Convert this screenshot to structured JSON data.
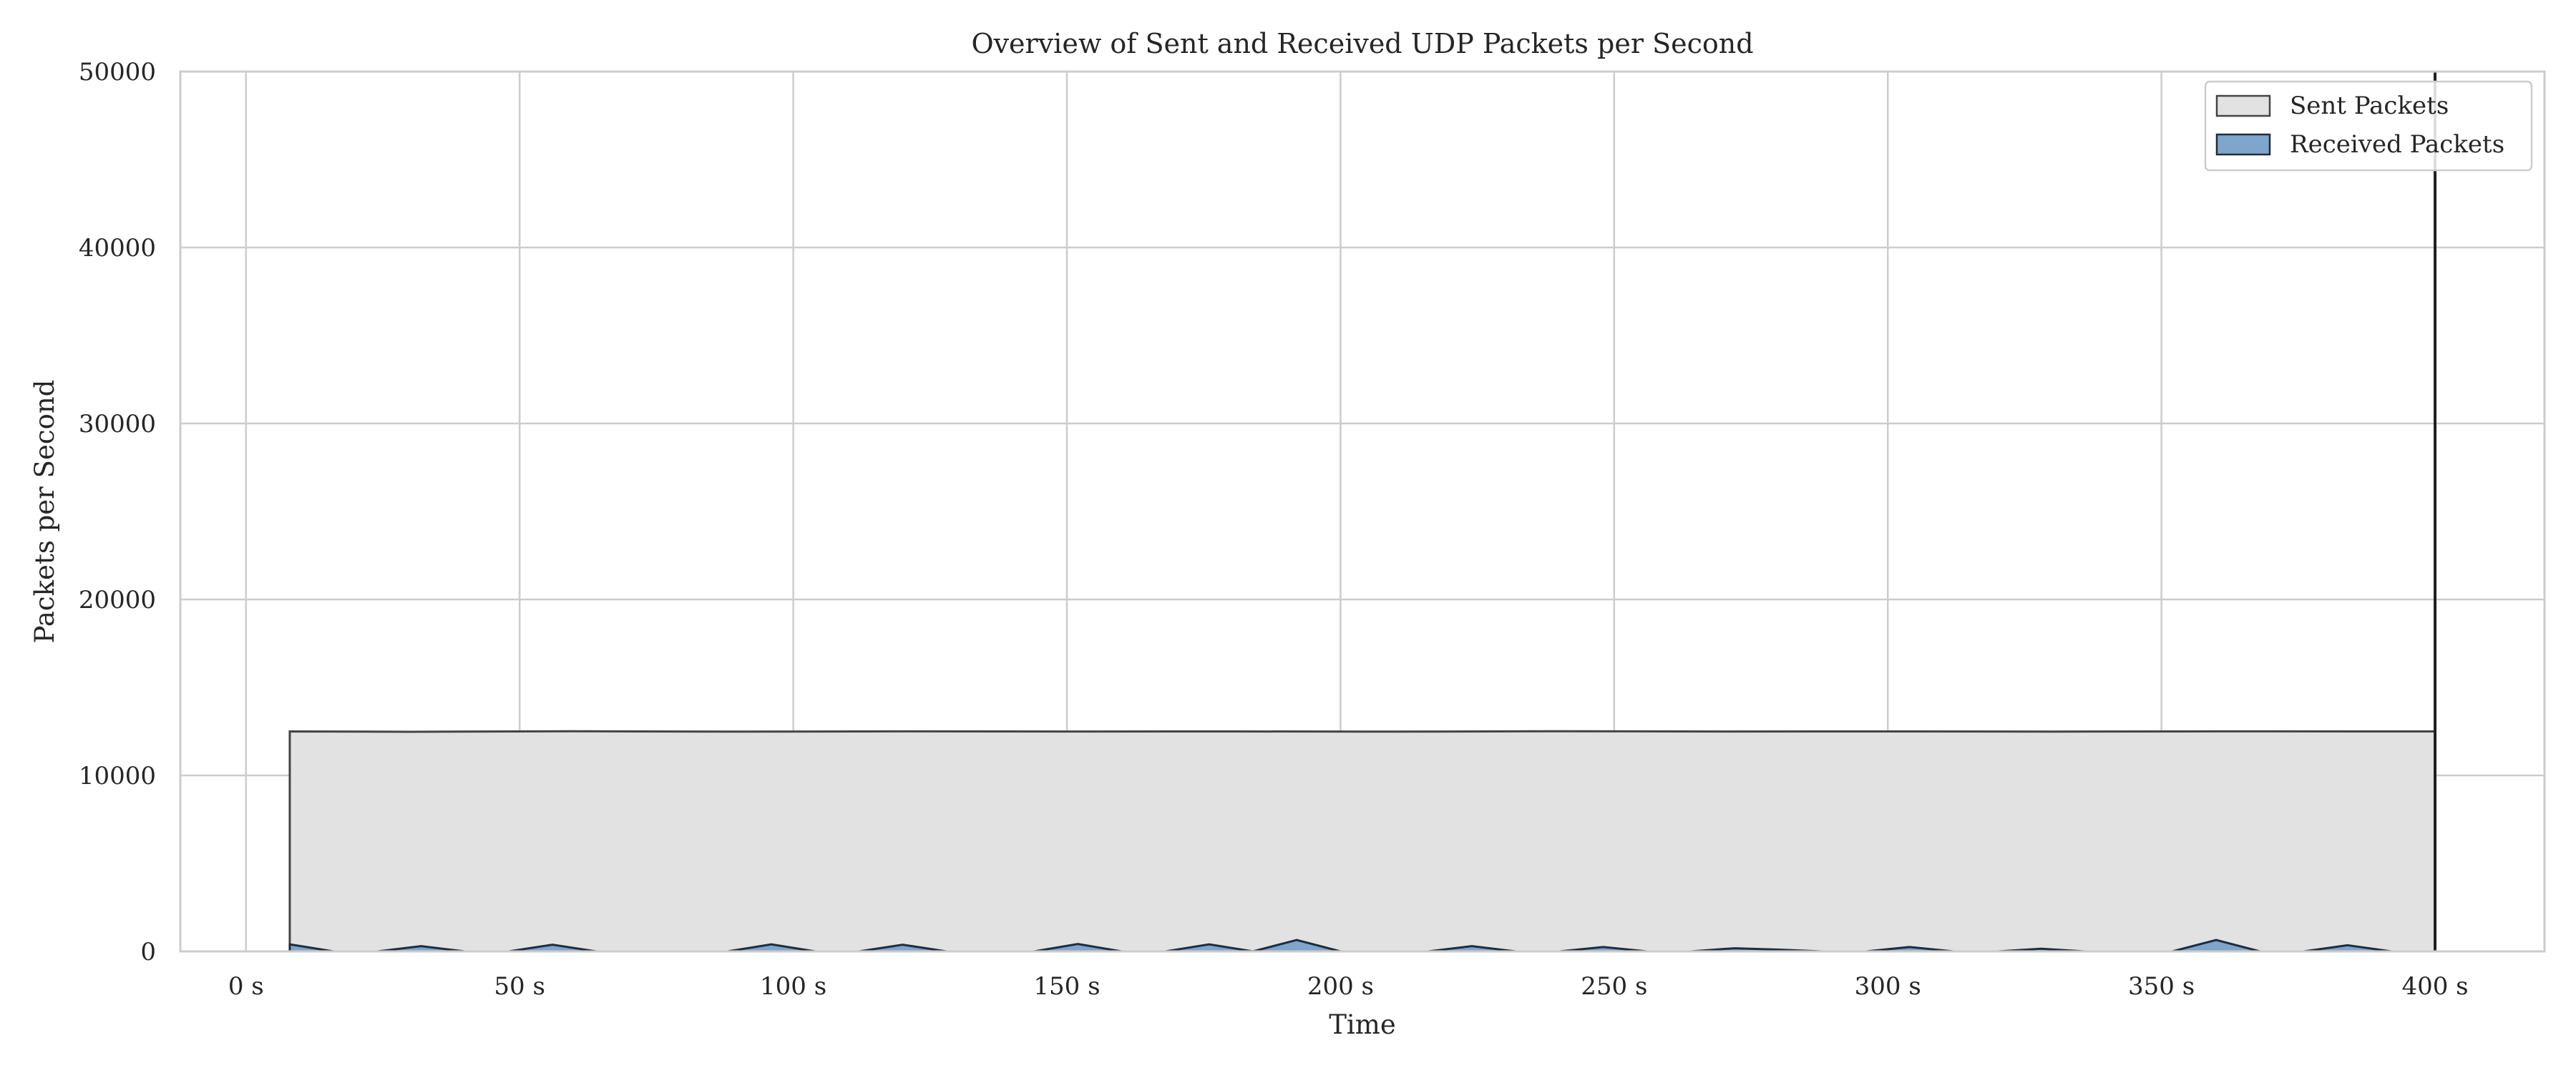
{
  "chart_data": {
    "type": "area",
    "title": "Overview of Sent and Received UDP Packets per Second",
    "xlabel": "Time",
    "ylabel": "Packets per Second",
    "xlim": [
      -12,
      420
    ],
    "ylim": [
      0,
      50000
    ],
    "x_ticks": [
      0,
      50,
      100,
      150,
      200,
      250,
      300,
      350,
      400
    ],
    "x_tick_labels": [
      "0 s",
      "50 s",
      "100 s",
      "150 s",
      "200 s",
      "250 s",
      "300 s",
      "350 s",
      "400 s"
    ],
    "y_ticks": [
      0,
      10000,
      20000,
      30000,
      40000,
      50000
    ],
    "y_tick_labels": [
      "0",
      "10000",
      "20000",
      "30000",
      "40000",
      "50000"
    ],
    "grid": true,
    "legend_position": "top-right",
    "series": [
      {
        "name": "Sent Packets",
        "color": "#e2e2e2",
        "edge_color": "#444444",
        "x": [
          8,
          30,
          60,
          90,
          120,
          150,
          180,
          210,
          240,
          270,
          300,
          330,
          360,
          390,
          400
        ],
        "values": [
          12500,
          12480,
          12510,
          12490,
          12505,
          12495,
          12500,
          12490,
          12510,
          12495,
          12500,
          12490,
          12505,
          12500,
          12500
        ]
      },
      {
        "name": "Received Packets",
        "color": "#7ea5cc",
        "edge_color": "#1f2d3d",
        "x": [
          8,
          16,
          24,
          32,
          40,
          48,
          56,
          64,
          72,
          80,
          88,
          96,
          104,
          112,
          120,
          128,
          136,
          144,
          152,
          160,
          168,
          176,
          184,
          192,
          200,
          208,
          216,
          224,
          232,
          240,
          248,
          256,
          264,
          272,
          280,
          288,
          296,
          304,
          312,
          320,
          328,
          336,
          344,
          352,
          360,
          368,
          376,
          384,
          392,
          400
        ],
        "values": [
          400,
          0,
          0,
          300,
          0,
          0,
          380,
          0,
          0,
          0,
          0,
          400,
          0,
          0,
          380,
          0,
          0,
          0,
          420,
          0,
          0,
          400,
          0,
          650,
          0,
          0,
          0,
          300,
          0,
          0,
          250,
          0,
          0,
          180,
          100,
          0,
          0,
          250,
          0,
          0,
          150,
          0,
          0,
          0,
          650,
          0,
          0,
          350,
          0,
          0
        ]
      }
    ],
    "spike": {
      "x": 400,
      "top": 50000
    }
  }
}
